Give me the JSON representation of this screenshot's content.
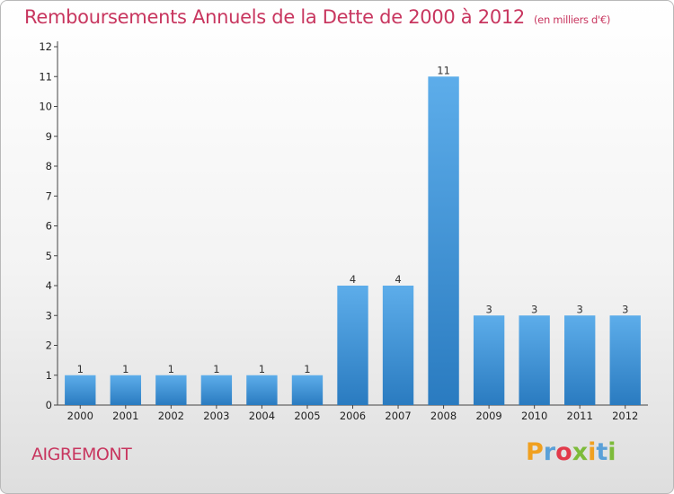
{
  "header": {
    "title": "Remboursements Annuels de la Dette de 2000 à 2012",
    "subtitle": "(en milliers d'€)"
  },
  "footer": {
    "place": "AIGREMONT",
    "logo_letters": [
      "P",
      "r",
      "o",
      "x",
      "i",
      "t",
      "i"
    ],
    "logo_colors": [
      "#f0a020",
      "#5aa0d8",
      "#e23a4a",
      "#7dbb3a",
      "#f0a020",
      "#5aa0d8",
      "#7dbb3a"
    ]
  },
  "chart_data": {
    "type": "bar",
    "title": "Remboursements Annuels de la Dette de 2000 à 2012",
    "subtitle": "(en milliers d'€)",
    "categories": [
      "2000",
      "2001",
      "2002",
      "2003",
      "2004",
      "2005",
      "2006",
      "2007",
      "2008",
      "2009",
      "2010",
      "2011",
      "2012"
    ],
    "values": [
      1,
      1,
      1,
      1,
      1,
      1,
      4,
      4,
      11,
      3,
      3,
      3,
      3
    ],
    "yticks": [
      0,
      1,
      2,
      3,
      4,
      5,
      6,
      7,
      8,
      9,
      10,
      11,
      12
    ],
    "ylim": [
      0,
      12
    ],
    "grid": false,
    "legend": "none",
    "bar_color_light": "#5dadea",
    "bar_color_dark": "#2a7bc0"
  }
}
